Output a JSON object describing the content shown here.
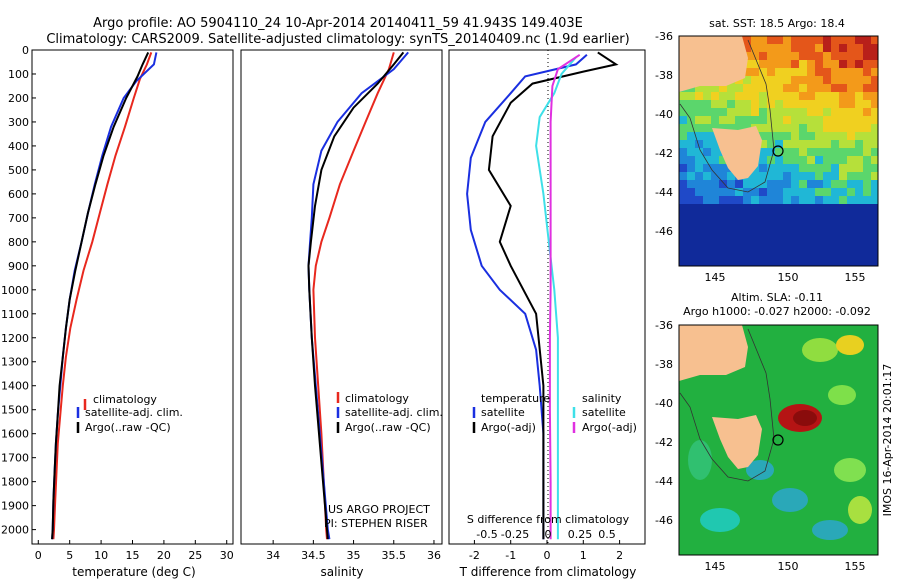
{
  "header": {
    "line1": "Argo profile: AO 5904110_24 10-Apr-2014 20140411_59 41.943S 149.403E",
    "line2": "Climatology: CARS2009. Satellite-adjusted climatology: synTS_20140409.nc (1.9d earlier)"
  },
  "colors": {
    "climatology": "#e8281e",
    "satellite": "#1a2fe0",
    "argo": "#000000",
    "satellite_s": "#3ee0e8",
    "argo_s": "#e030e0",
    "land": "#f7c090",
    "axis": "#000000"
  },
  "chart_data": [
    {
      "type": "line",
      "panel": "temperature",
      "xlabel": "temperature (deg C)",
      "xlim": [
        -1,
        31
      ],
      "ylim": [
        2060,
        0
      ],
      "xticks": [
        "0",
        "5",
        "10",
        "15",
        "20",
        "25",
        "30"
      ],
      "yticks": [
        "0",
        "100",
        "200",
        "300",
        "400",
        "500",
        "600",
        "700",
        "800",
        "900",
        "1000",
        "1100",
        "1200",
        "1300",
        "1400",
        "1500",
        "1600",
        "1700",
        "1800",
        "1900",
        "2000"
      ],
      "legend": [
        "climatology",
        "satellite-adj. clim.",
        "Argo(..raw -QC)"
      ],
      "series": [
        {
          "name": "climatology",
          "points": [
            [
              18.0,
              10
            ],
            [
              17.3,
              60
            ],
            [
              16.2,
              120
            ],
            [
              15.2,
              200
            ],
            [
              13.8,
              320
            ],
            [
              12.3,
              440
            ],
            [
              11.0,
              560
            ],
            [
              9.8,
              680
            ],
            [
              8.6,
              800
            ],
            [
              7.2,
              920
            ],
            [
              6.1,
              1040
            ],
            [
              5.1,
              1160
            ],
            [
              4.4,
              1280
            ],
            [
              3.9,
              1400
            ],
            [
              3.5,
              1520
            ],
            [
              3.1,
              1640
            ],
            [
              2.9,
              1760
            ],
            [
              2.7,
              1880
            ],
            [
              2.5,
              2000
            ],
            [
              2.4,
              2040
            ]
          ]
        },
        {
          "name": "satellite-adj. clim.",
          "points": [
            [
              18.8,
              10
            ],
            [
              18.4,
              60
            ],
            [
              15.6,
              130
            ],
            [
              13.6,
              200
            ],
            [
              11.6,
              320
            ],
            [
              10.2,
              440
            ],
            [
              9.0,
              560
            ],
            [
              7.9,
              680
            ],
            [
              6.9,
              800
            ],
            [
              5.8,
              920
            ],
            [
              5.0,
              1040
            ],
            [
              4.4,
              1160
            ],
            [
              3.9,
              1280
            ],
            [
              3.5,
              1400
            ],
            [
              3.1,
              1520
            ],
            [
              2.8,
              1640
            ],
            [
              2.6,
              1760
            ],
            [
              2.4,
              1880
            ],
            [
              2.3,
              2000
            ],
            [
              2.2,
              2040
            ]
          ]
        },
        {
          "name": "Argo(..raw -QC)",
          "points": [
            [
              17.5,
              10
            ],
            [
              16.6,
              60
            ],
            [
              15.8,
              110
            ],
            [
              14.0,
              200
            ],
            [
              12.0,
              320
            ],
            [
              10.4,
              440
            ],
            [
              9.1,
              560
            ],
            [
              7.9,
              680
            ],
            [
              6.9,
              800
            ],
            [
              5.9,
              920
            ],
            [
              5.0,
              1040
            ],
            [
              4.4,
              1160
            ],
            [
              3.9,
              1280
            ],
            [
              3.4,
              1400
            ],
            [
              3.1,
              1520
            ],
            [
              2.8,
              1640
            ],
            [
              2.6,
              1760
            ],
            [
              2.4,
              1880
            ],
            [
              2.3,
              2000
            ],
            [
              2.2,
              2040
            ]
          ]
        }
      ]
    },
    {
      "type": "line",
      "panel": "salinity",
      "xlabel": "salinity",
      "xlim": [
        33.6,
        36.1
      ],
      "ylim": [
        2060,
        0
      ],
      "xticks": [
        "34",
        "34.5",
        "35",
        "35.5",
        "36"
      ],
      "legend": [
        "climatology",
        "satellite-adj. clim.",
        "Argo(..raw -QC)"
      ],
      "note_line1": "US ARGO PROJECT",
      "note_line2": "PI: STEPHEN RISER",
      "series": [
        {
          "name": "climatology",
          "points": [
            [
              35.5,
              10
            ],
            [
              35.44,
              80
            ],
            [
              35.3,
              180
            ],
            [
              35.15,
              300
            ],
            [
              35.0,
              420
            ],
            [
              34.83,
              560
            ],
            [
              34.7,
              700
            ],
            [
              34.6,
              800
            ],
            [
              34.53,
              900
            ],
            [
              34.5,
              1000
            ],
            [
              34.52,
              1200
            ],
            [
              34.56,
              1400
            ],
            [
              34.6,
              1600
            ],
            [
              34.63,
              1800
            ],
            [
              34.66,
              2000
            ],
            [
              34.67,
              2040
            ]
          ]
        },
        {
          "name": "satellite-adj. clim.",
          "points": [
            [
              35.68,
              10
            ],
            [
              35.5,
              80
            ],
            [
              35.1,
              180
            ],
            [
              34.8,
              300
            ],
            [
              34.6,
              420
            ],
            [
              34.5,
              560
            ],
            [
              34.48,
              700
            ],
            [
              34.46,
              800
            ],
            [
              34.44,
              900
            ],
            [
              34.45,
              1000
            ],
            [
              34.48,
              1200
            ],
            [
              34.53,
              1400
            ],
            [
              34.58,
              1600
            ],
            [
              34.63,
              1800
            ],
            [
              34.68,
              2000
            ],
            [
              34.7,
              2040
            ]
          ]
        },
        {
          "name": "Argo(..raw -QC)",
          "points": [
            [
              35.62,
              10
            ],
            [
              35.5,
              60
            ],
            [
              35.3,
              140
            ],
            [
              35.0,
              240
            ],
            [
              34.76,
              360
            ],
            [
              34.6,
              500
            ],
            [
              34.52,
              650
            ],
            [
              34.47,
              800
            ],
            [
              34.44,
              900
            ],
            [
              34.45,
              1000
            ],
            [
              34.48,
              1200
            ],
            [
              34.52,
              1400
            ],
            [
              34.57,
              1600
            ],
            [
              34.62,
              1800
            ],
            [
              34.67,
              2000
            ],
            [
              34.68,
              2040
            ]
          ]
        }
      ]
    },
    {
      "type": "line",
      "panel": "difference",
      "xlabel": "T difference from climatology",
      "top_label": "S difference from climatology",
      "xlim": [
        -2.7,
        2.7
      ],
      "ylim": [
        2060,
        0
      ],
      "xticks": [
        "-2",
        "-1",
        "0",
        "1",
        "2"
      ],
      "sticks": [
        "-0.5",
        "-0.25",
        "0",
        "0.25",
        "0.5"
      ],
      "legend_temp_title": "temperature",
      "legend_sal_title": "salinity",
      "legend": [
        "satellite",
        "Argo(-adj)",
        "satellite",
        "Argo(-adj)"
      ],
      "series": [
        {
          "name": "satellite",
          "points": [
            [
              1.1,
              20
            ],
            [
              0.8,
              60
            ],
            [
              -0.6,
              110
            ],
            [
              -1.0,
              180
            ],
            [
              -1.7,
              300
            ],
            [
              -2.1,
              450
            ],
            [
              -2.2,
              600
            ],
            [
              -2.1,
              750
            ],
            [
              -1.8,
              900
            ],
            [
              -1.3,
              1000
            ],
            [
              -0.6,
              1100
            ],
            [
              -0.3,
              1250
            ],
            [
              -0.2,
              1400
            ],
            [
              -0.1,
              1600
            ],
            [
              -0.1,
              1800
            ],
            [
              -0.1,
              2000
            ],
            [
              -0.1,
              2040
            ]
          ]
        },
        {
          "name": "Argo(-adj)",
          "points": [
            [
              1.4,
              10
            ],
            [
              1.9,
              60
            ],
            [
              1.0,
              90
            ],
            [
              -0.4,
              140
            ],
            [
              -1.0,
              220
            ],
            [
              -1.5,
              360
            ],
            [
              -1.6,
              500
            ],
            [
              -1.0,
              650
            ],
            [
              -1.3,
              800
            ],
            [
              -1.0,
              900
            ],
            [
              -0.3,
              1100
            ],
            [
              -0.1,
              1400
            ],
            [
              -0.1,
              1700
            ],
            [
              -0.1,
              2040
            ]
          ]
        },
        {
          "name": "satellite",
          "points": [
            [
              0.8,
              30
            ],
            [
              0.4,
              100
            ],
            [
              0.2,
              180
            ],
            [
              -0.2,
              280
            ],
            [
              -0.3,
              400
            ],
            [
              -0.1,
              600
            ],
            [
              0.05,
              800
            ],
            [
              0.2,
              1000
            ],
            [
              0.3,
              1200
            ],
            [
              0.3,
              1400
            ],
            [
              0.3,
              1600
            ],
            [
              0.3,
              1800
            ],
            [
              0.3,
              2040
            ]
          ]
        },
        {
          "name": "Argo(-adj)",
          "points": [
            [
              0.9,
              20
            ],
            [
              0.3,
              80
            ],
            [
              0.15,
              150
            ],
            [
              0.1,
              300
            ],
            [
              0.1,
              500
            ],
            [
              0.1,
              800
            ],
            [
              0.1,
              1000
            ],
            [
              0.08,
              1200
            ],
            [
              0.08,
              1500
            ],
            [
              0.1,
              1800
            ],
            [
              0.1,
              2040
            ]
          ]
        }
      ]
    }
  ],
  "maps": {
    "top_title": "sat. SST: 18.5  Argo: 18.4",
    "bottom_title_line1": "Altim. SLA: -0.11",
    "bottom_title_line2": "Argo h1000: -0.027 h2000: -0.092",
    "xticks": [
      "145",
      "150",
      "155"
    ],
    "yticks": [
      "-36",
      "-38",
      "-40",
      "-42",
      "-44",
      "-46"
    ],
    "timestamp": "IMOS 16-Apr-2014 20:01:17"
  }
}
